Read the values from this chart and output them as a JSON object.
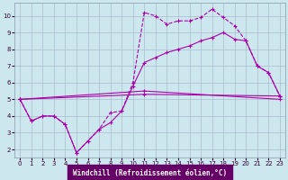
{
  "background_color": "#cce8ee",
  "grid_color": "#aabbcc",
  "line_color": "#aa00aa",
  "xlabel": "Windchill (Refroidissement éolien,°C)",
  "xlabel_color": "#ffffff",
  "xlabel_bg": "#660066",
  "ylim": [
    1.5,
    10.8
  ],
  "xlim": [
    -0.5,
    23.5
  ],
  "yticks": [
    2,
    3,
    4,
    5,
    6,
    7,
    8,
    9,
    10
  ],
  "xticks": [
    0,
    1,
    2,
    3,
    4,
    5,
    6,
    7,
    8,
    9,
    10,
    11,
    12,
    13,
    14,
    15,
    16,
    17,
    18,
    19,
    20,
    21,
    22,
    23
  ],
  "series": [
    {
      "x": [
        0,
        1,
        2,
        3,
        4,
        5,
        6,
        7,
        8,
        9,
        10,
        11,
        12,
        13,
        14,
        15,
        16,
        17,
        18,
        19,
        20,
        21,
        22,
        23
      ],
      "y": [
        5.0,
        3.7,
        4.0,
        4.0,
        3.5,
        1.8,
        2.5,
        3.2,
        4.2,
        4.3,
        6.0,
        10.2,
        10.0,
        9.5,
        9.7,
        9.7,
        9.9,
        10.4,
        9.9,
        9.4,
        8.5,
        7.0,
        6.6,
        5.2
      ],
      "linestyle": "--",
      "marker": "+"
    },
    {
      "x": [
        0,
        1,
        2,
        3,
        4,
        5,
        6,
        7,
        8,
        9,
        10,
        11,
        12,
        13,
        14,
        15,
        16,
        17,
        18,
        19,
        20,
        21,
        22,
        23
      ],
      "y": [
        5.0,
        3.7,
        4.0,
        4.0,
        3.5,
        1.8,
        2.5,
        3.2,
        3.6,
        4.3,
        5.8,
        7.2,
        7.5,
        7.8,
        8.0,
        8.2,
        8.5,
        8.7,
        9.0,
        8.6,
        8.5,
        7.0,
        6.6,
        5.2
      ],
      "linestyle": "-",
      "marker": "+"
    },
    {
      "x": [
        0,
        11,
        23
      ],
      "y": [
        5.0,
        5.3,
        5.2
      ],
      "linestyle": "-",
      "marker": "+"
    },
    {
      "x": [
        0,
        11,
        23
      ],
      "y": [
        5.0,
        5.5,
        5.0
      ],
      "linestyle": "-",
      "marker": "+"
    }
  ]
}
